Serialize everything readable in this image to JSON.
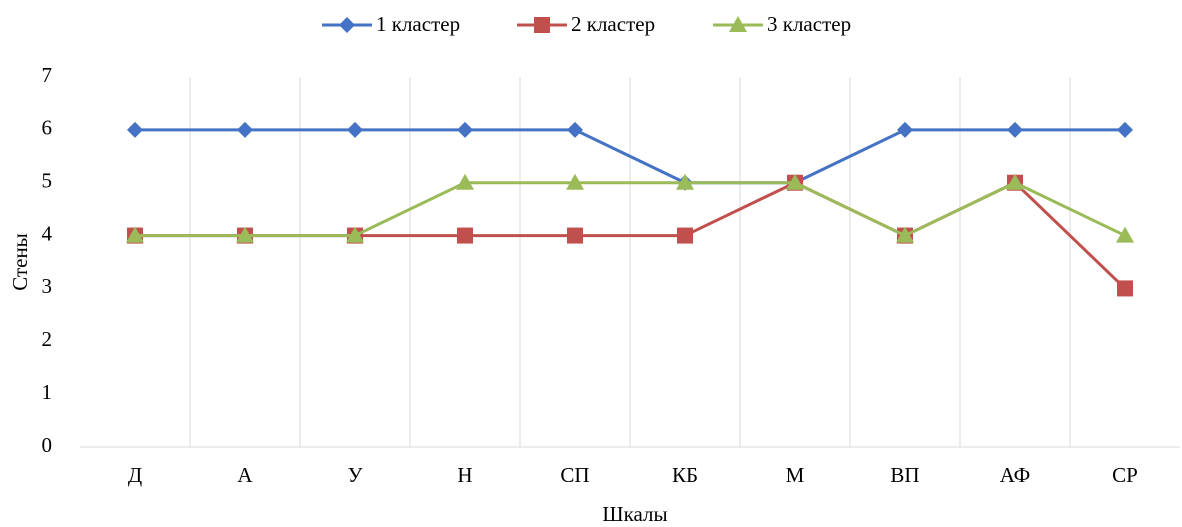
{
  "chart_data": {
    "type": "line",
    "x_label": "Шкалы",
    "y_label": "Стены",
    "categories": [
      "Д",
      "А",
      "У",
      "Н",
      "СП",
      "КБ",
      "М",
      "ВП",
      "АФ",
      "СР"
    ],
    "series": [
      {
        "name": "1 кластер",
        "color": "#4472c4",
        "marker": "diamond",
        "values": [
          6,
          6,
          6,
          6,
          6,
          5,
          5,
          6,
          6,
          6
        ]
      },
      {
        "name": "2 кластер",
        "color": "#c0504d",
        "marker": "square",
        "values": [
          4,
          4,
          4,
          4,
          4,
          4,
          5,
          4,
          5,
          3
        ]
      },
      {
        "name": "3 кластер",
        "color": "#9bbb59",
        "marker": "triangle",
        "values": [
          4,
          4,
          4,
          5,
          5,
          5,
          5,
          4,
          5,
          4
        ]
      }
    ],
    "ylim": [
      0,
      7
    ],
    "yticks": [
      0,
      1,
      2,
      3,
      4,
      5,
      6,
      7
    ],
    "category_grid": true,
    "legend_position": "top"
  }
}
